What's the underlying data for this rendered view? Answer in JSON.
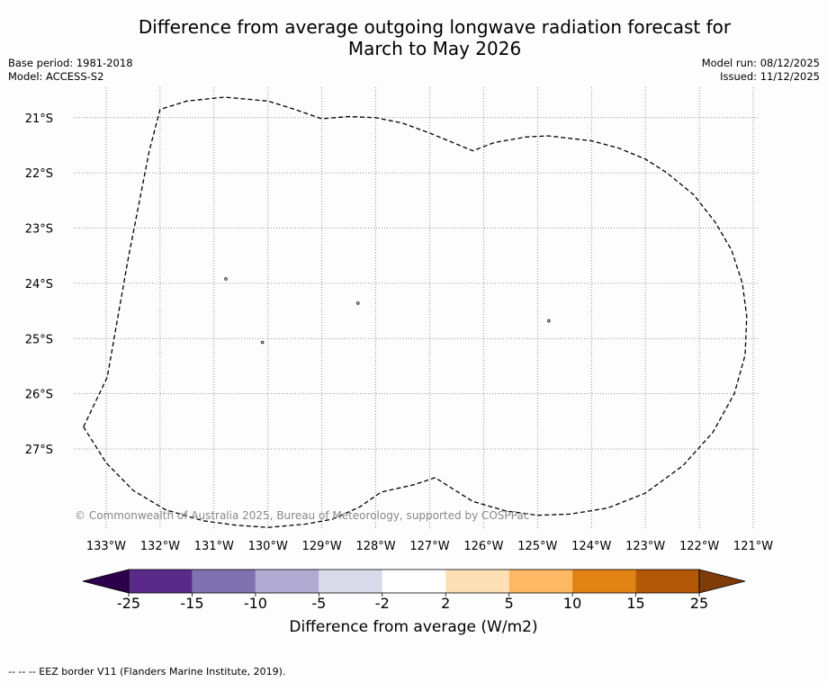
{
  "title": {
    "line1": "Difference from average outgoing longwave radiation forecast for",
    "line2": "March to May 2026"
  },
  "meta": {
    "base_period": "Base period: 1981-2018",
    "model": "Model: ACCESS-S2",
    "model_run": "Model run: 08/12/2025",
    "issued": "Issued: 11/12/2025"
  },
  "map": {
    "lon_range": [
      -133.6,
      -120.9
    ],
    "lat_range": [
      -28.45,
      -20.45
    ],
    "lon_ticks": [
      -133,
      -132,
      -131,
      -130,
      -129,
      -128,
      -127,
      -126,
      -125,
      -124,
      -123,
      -122,
      -121
    ],
    "lon_labels": [
      "133°W",
      "132°W",
      "131°W",
      "130°W",
      "129°W",
      "128°W",
      "127°W",
      "126°W",
      "125°W",
      "124°W",
      "123°W",
      "122°W",
      "121°W"
    ],
    "lat_ticks": [
      -21,
      -22,
      -23,
      -24,
      -25,
      -26,
      -27
    ],
    "lat_labels": [
      "21°S",
      "22°S",
      "23°S",
      "24°S",
      "25°S",
      "26°S",
      "27°S"
    ],
    "eez_border": [
      [
        -133.42,
        -26.6
      ],
      [
        -132.98,
        -25.7
      ],
      [
        -132.6,
        -23.6
      ],
      [
        -132.2,
        -21.6
      ],
      [
        -132.0,
        -20.85
      ],
      [
        -131.5,
        -20.7
      ],
      [
        -130.8,
        -20.63
      ],
      [
        -130.0,
        -20.7
      ],
      [
        -129.5,
        -20.85
      ],
      [
        -129.0,
        -21.02
      ],
      [
        -128.5,
        -20.98
      ],
      [
        -128.0,
        -21.0
      ],
      [
        -127.5,
        -21.1
      ],
      [
        -127.0,
        -21.28
      ],
      [
        -126.2,
        -21.6
      ],
      [
        -125.8,
        -21.45
      ],
      [
        -125.2,
        -21.35
      ],
      [
        -124.8,
        -21.33
      ],
      [
        -124.0,
        -21.42
      ],
      [
        -123.5,
        -21.55
      ],
      [
        -123.0,
        -21.75
      ],
      [
        -122.6,
        -22.0
      ],
      [
        -122.1,
        -22.4
      ],
      [
        -121.7,
        -22.9
      ],
      [
        -121.4,
        -23.4
      ],
      [
        -121.2,
        -24.0
      ],
      [
        -121.12,
        -24.6
      ],
      [
        -121.15,
        -25.3
      ],
      [
        -121.35,
        -26.0
      ],
      [
        -121.75,
        -26.7
      ],
      [
        -122.3,
        -27.3
      ],
      [
        -123.0,
        -27.8
      ],
      [
        -123.7,
        -28.07
      ],
      [
        -124.4,
        -28.18
      ],
      [
        -125.0,
        -28.2
      ],
      [
        -125.6,
        -28.12
      ],
      [
        -126.2,
        -27.95
      ],
      [
        -126.9,
        -27.52
      ],
      [
        -127.3,
        -27.65
      ],
      [
        -127.9,
        -27.78
      ],
      [
        -128.3,
        -28.05
      ],
      [
        -128.8,
        -28.27
      ],
      [
        -129.3,
        -28.36
      ],
      [
        -130.0,
        -28.42
      ],
      [
        -130.6,
        -28.38
      ],
      [
        -131.2,
        -28.3
      ],
      [
        -131.9,
        -28.1
      ],
      [
        -132.5,
        -27.75
      ],
      [
        -133.0,
        -27.25
      ],
      [
        -133.42,
        -26.6
      ]
    ],
    "islands": [
      {
        "name": "island-near-131w",
        "lon": -130.78,
        "lat": -23.92
      },
      {
        "name": "island-near-128w",
        "lon": -128.33,
        "lat": -24.36
      },
      {
        "name": "island-near-130w",
        "lon": -130.1,
        "lat": -25.07
      },
      {
        "name": "island-near-125w",
        "lon": -124.79,
        "lat": -24.68
      }
    ],
    "copyright": "© Commonwealth of Australia 2025, Bureau of Meteorology, supported by COSPPac"
  },
  "colorbar": {
    "boundaries": [
      -25,
      -15,
      -10,
      -5,
      -2,
      2,
      5,
      10,
      15,
      25
    ],
    "tick_labels": [
      "-25",
      "-15",
      "-10",
      "-5",
      "-2",
      "2",
      "5",
      "10",
      "15",
      "25"
    ],
    "colors": [
      "#5a2a8a",
      "#8071b0",
      "#b1aad2",
      "#dadaeb",
      "#ffffff",
      "#fee0b6",
      "#fdb863",
      "#e08214",
      "#b35806"
    ],
    "under_color": "#2d004b",
    "over_color": "#7f3b08",
    "label": "Difference from average (W/m2)"
  },
  "footnote": "--  --  -- EEZ border V11 (Flanders Marine Institute, 2019)."
}
